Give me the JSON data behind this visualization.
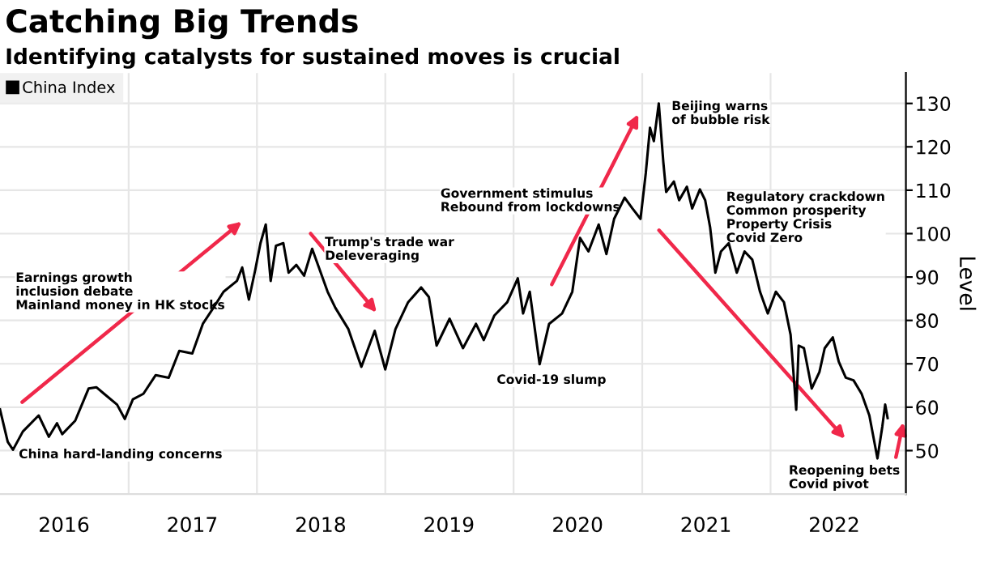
{
  "chart_data": {
    "type": "line",
    "title": "Catching Big Trends",
    "subtitle": "Identifying catalysts for sustained moves is crucial",
    "ylabel": "Level",
    "annotations": [
      "Earnings growth\ninclusion debate\nMainland money in HK stocks",
      "China hard-landing concerns",
      "Trump's trade war\nDeleveraging",
      "Government stimulus\nRebound from lockdowns",
      "Covid-19 slump",
      "Beijing warns\nof bubble risk",
      "Regulatory crackdown\nCommon prosperity\nProperty Crisis\nCovid Zero",
      "Reopening bets\nCovid pivot"
    ],
    "x": [
      "2016-01-01",
      "2016-01-23",
      "2016-02-07",
      "2016-03-06",
      "2016-04-20",
      "2016-05-19",
      "2016-06-11",
      "2016-06-26",
      "2016-08-02",
      "2016-09-09",
      "2016-10-01",
      "2016-10-23",
      "2016-11-29",
      "2016-12-21",
      "2017-01-13",
      "2017-02-12",
      "2017-03-19",
      "2017-04-25",
      "2017-05-25",
      "2017-07-01",
      "2017-07-31",
      "2017-08-30",
      "2017-09-28",
      "2017-11-05",
      "2017-11-20",
      "2017-12-09",
      "2017-12-27",
      "2018-01-11",
      "2018-01-26",
      "2018-02-09",
      "2018-02-24",
      "2018-03-17",
      "2018-04-01",
      "2018-04-23",
      "2018-05-15",
      "2018-06-07",
      "2018-07-21",
      "2018-08-12",
      "2018-09-18",
      "2018-10-25",
      "2018-12-02",
      "2019-01-01",
      "2019-01-30",
      "2019-03-07",
      "2019-04-13",
      "2019-05-05",
      "2019-05-27",
      "2019-07-03",
      "2019-08-10",
      "2019-09-16",
      "2019-10-08",
      "2019-11-07",
      "2019-12-14",
      "2020-01-13",
      "2020-01-28",
      "2020-02-16",
      "2020-03-15",
      "2020-04-11",
      "2020-05-18",
      "2020-06-16",
      "2020-07-08",
      "2020-08-01",
      "2020-08-30",
      "2020-09-21",
      "2020-10-13",
      "2020-11-12",
      "2020-12-04",
      "2020-12-27",
      "2021-01-11",
      "2021-01-23",
      "2021-02-03",
      "2021-02-17",
      "2021-03-02",
      "2021-03-10",
      "2021-04-01",
      "2021-04-16",
      "2021-05-08",
      "2021-05-23",
      "2021-06-14",
      "2021-06-29",
      "2021-07-13",
      "2021-07-28",
      "2021-08-13",
      "2021-09-04",
      "2021-09-27",
      "2021-10-19",
      "2021-11-10",
      "2021-12-02",
      "2021-12-24",
      "2022-01-16",
      "2022-02-08",
      "2022-02-27",
      "2022-03-15",
      "2022-03-22",
      "2022-04-06",
      "2022-04-28",
      "2022-05-20",
      "2022-06-04",
      "2022-06-27",
      "2022-07-14",
      "2022-08-03",
      "2022-08-25",
      "2022-09-17",
      "2022-10-09",
      "2022-11-01",
      "2022-11-15",
      "2022-11-23",
      "2022-11-30"
    ],
    "series": [
      {
        "name": "China Index",
        "color": "#000000",
        "values": [
          59.5,
          52,
          50.2,
          54.4,
          58.1,
          53.2,
          56.3,
          53.8,
          56.9,
          64.3,
          64.6,
          63.1,
          60.6,
          57.3,
          61.8,
          63.1,
          67.4,
          66.8,
          73.0,
          72.4,
          79.2,
          82.9,
          86.6,
          89.1,
          92.2,
          84.8,
          91.6,
          97.8,
          102.1,
          89.1,
          97.2,
          97.8,
          91,
          92.8,
          90.3,
          96.5,
          86.6,
          82.9,
          78,
          69.3,
          77.6,
          68.7,
          78,
          84.2,
          87.6,
          85.4,
          74.2,
          80.4,
          73.6,
          79.2,
          75.5,
          81.1,
          84.2,
          89.7,
          81.6,
          86.6,
          69.9,
          79.2,
          81.6,
          86.6,
          99,
          95.9,
          102.1,
          95.3,
          103.4,
          108.3,
          105.8,
          103.4,
          113.9,
          124.4,
          121.3,
          130,
          116.4,
          109.6,
          112,
          107.7,
          110.8,
          105.8,
          110.2,
          107.7,
          101.5,
          91,
          95.9,
          97.8,
          91,
          95.9,
          94,
          86.6,
          81.6,
          86.6,
          84.2,
          76.7,
          59.4,
          74.2,
          73.6,
          64.3,
          68.1,
          73.6,
          76.1,
          70.5,
          66.8,
          66.2,
          63.1,
          58.1,
          48.2,
          55.6,
          60.6,
          57.5
        ]
      }
    ],
    "xlim": [
      "2016-01-01",
      "2023-01-21"
    ],
    "ylim": [
      40,
      137
    ],
    "xticks": [
      {
        "value": "2016-07-01",
        "label": "2016"
      },
      {
        "value": "2017-01-01",
        "label": null
      },
      {
        "value": "2017-07-01",
        "label": "2017"
      },
      {
        "value": "2018-01-01",
        "label": null
      },
      {
        "value": "2018-07-01",
        "label": "2018"
      },
      {
        "value": "2019-01-01",
        "label": null
      },
      {
        "value": "2019-07-01",
        "label": "2019"
      },
      {
        "value": "2020-01-01",
        "label": null
      },
      {
        "value": "2020-07-01",
        "label": "2020"
      },
      {
        "value": "2021-01-01",
        "label": null
      },
      {
        "value": "2021-07-01",
        "label": "2021"
      },
      {
        "value": "2022-01-01",
        "label": null
      },
      {
        "value": "2022-07-01",
        "label": "2022"
      }
    ],
    "yticks": [
      50,
      60,
      70,
      80,
      90,
      100,
      110,
      120,
      130
    ],
    "grid": true,
    "legend": "top left",
    "marker": "none",
    "line_style": "solid"
  }
}
